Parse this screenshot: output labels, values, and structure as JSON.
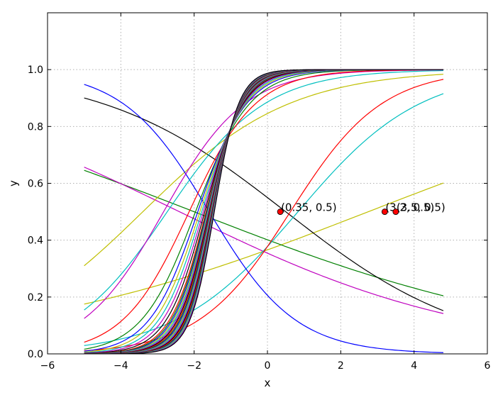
{
  "chart_data": {
    "type": "line",
    "title": "",
    "xlabel": "x",
    "ylabel": "y",
    "xlim": [
      -6,
      6
    ],
    "ylim": [
      0,
      1.2
    ],
    "xticks": [
      -6,
      -4,
      -2,
      0,
      2,
      4,
      6
    ],
    "yticks": [
      0.0,
      0.2,
      0.4,
      0.6,
      0.8,
      1.0
    ],
    "xtick_labels": [
      "−6",
      "−4",
      "−2",
      "0",
      "2",
      "4",
      "6"
    ],
    "ytick_labels": [
      "0.0",
      "0.2",
      "0.4",
      "0.6",
      "0.8",
      "1.0"
    ],
    "grid": true,
    "x_domain": [
      -5,
      4.8
    ],
    "curve_model": "logistic y = 1/(1+exp(-(a*x+b)))",
    "series": [
      {
        "a": 0.2,
        "b": -0.55,
        "color": "#bfbf00"
      },
      {
        "a": -0.2,
        "b": -0.4,
        "color": "#008000"
      },
      {
        "a": -0.25,
        "b": -0.6,
        "color": "#bf00bf"
      },
      {
        "a": -0.4,
        "b": 0.2,
        "color": "#000000"
      },
      {
        "a": 0.6,
        "b": -0.5,
        "color": "#00bfbf"
      },
      {
        "a": 0.8,
        "b": -0.5,
        "color": "#ff0000"
      },
      {
        "a": 0.5,
        "b": 1.7,
        "color": "#bfbf00"
      },
      {
        "a": -0.85,
        "b": -1.35,
        "color": "#0000ff"
      },
      {
        "a": 0.75,
        "b": 2.05,
        "color": "#00bfbf"
      },
      {
        "a": 0.9,
        "b": 2.55,
        "color": "#bf00bf"
      },
      {
        "a": 1.1,
        "b": 2.35,
        "color": "#ff0000"
      },
      {
        "a": 1.35,
        "b": 2.65,
        "color": "#008000"
      },
      {
        "a": 1.5,
        "b": 2.85,
        "color": "#0000ff"
      },
      {
        "a": 1.6,
        "b": 2.95,
        "color": "#bfbf00"
      },
      {
        "a": 1.7,
        "b": 3.05,
        "color": "#00bfbf"
      },
      {
        "a": 1.8,
        "b": 3.15,
        "color": "#bf00bf"
      },
      {
        "a": 1.9,
        "b": 3.25,
        "color": "#000000"
      },
      {
        "a": 2.0,
        "b": 3.35,
        "color": "#ff0000"
      },
      {
        "a": 2.05,
        "b": 3.4,
        "color": "#008000"
      },
      {
        "a": 2.1,
        "b": 3.45,
        "color": "#0000ff"
      },
      {
        "a": 2.15,
        "b": 3.5,
        "color": "#bfbf00"
      },
      {
        "a": 2.2,
        "b": 3.55,
        "color": "#00bfbf"
      },
      {
        "a": 2.25,
        "b": 3.6,
        "color": "#bf00bf"
      },
      {
        "a": 2.3,
        "b": 3.65,
        "color": "#000000"
      },
      {
        "a": 2.35,
        "b": 3.7,
        "color": "#ff0000"
      },
      {
        "a": 2.4,
        "b": 3.75,
        "color": "#008000"
      },
      {
        "a": 2.45,
        "b": 3.8,
        "color": "#0000ff"
      },
      {
        "a": 2.5,
        "b": 3.85,
        "color": "#bfbf00"
      },
      {
        "a": 2.55,
        "b": 3.9,
        "color": "#00bfbf"
      },
      {
        "a": 2.6,
        "b": 3.95,
        "color": "#bf00bf"
      },
      {
        "a": 2.65,
        "b": 4.0,
        "color": "#000000"
      },
      {
        "a": 2.7,
        "b": 4.05,
        "color": "#ff0000"
      },
      {
        "a": 2.75,
        "b": 4.1,
        "color": "#008000"
      },
      {
        "a": 2.8,
        "b": 4.15,
        "color": "#0000ff"
      },
      {
        "a": 2.85,
        "b": 4.2,
        "color": "#bfbf00"
      },
      {
        "a": 2.9,
        "b": 4.25,
        "color": "#00bfbf"
      },
      {
        "a": 2.95,
        "b": 4.3,
        "color": "#bf00bf"
      },
      {
        "a": 3.0,
        "b": 4.35,
        "color": "#000000"
      }
    ],
    "points": [
      {
        "x": 0.35,
        "y": 0.5,
        "label": "(0.35, 0.5)",
        "color": "#ff0000"
      },
      {
        "x": 3.2,
        "y": 0.5,
        "label": "(3.2, 0.5)",
        "color": "#ff0000"
      },
      {
        "x": 3.5,
        "y": 0.5,
        "label": "(3.5, 0.5)",
        "color": "#ff0000"
      }
    ]
  }
}
